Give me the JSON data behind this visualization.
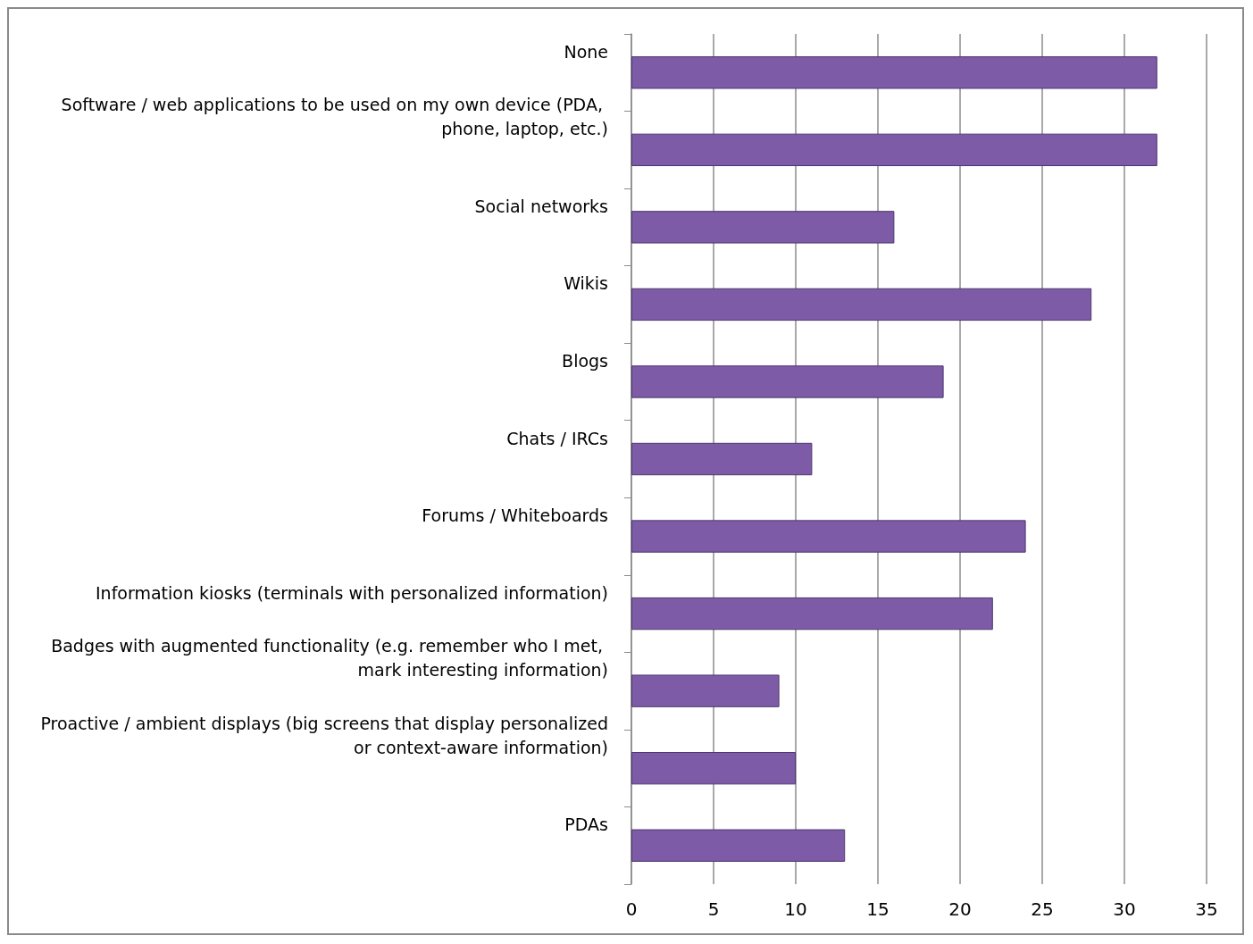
{
  "chart_data": {
    "type": "bar",
    "orientation": "horizontal",
    "categories": [
      "None",
      "Software / web applications to be used on my own device (PDA, phone, laptop, etc.)",
      "Social networks",
      "Wikis",
      "Blogs",
      "Chats / IRCs",
      "Forums / Whiteboards",
      "Information kiosks (terminals with personalized information)",
      "Badges with augmented functionality (e.g. remember who I met, mark interesting information)",
      "Proactive / ambient displays (big screens that display personalized or context-aware information)",
      "PDAs"
    ],
    "values": [
      32,
      32,
      16,
      28,
      19,
      11,
      24,
      22,
      9,
      10,
      13
    ],
    "color": "#7d5ba6",
    "xlim": [
      0,
      35
    ],
    "xticks": [
      0,
      5,
      10,
      15,
      20,
      25,
      30,
      35
    ],
    "grid": "x"
  }
}
